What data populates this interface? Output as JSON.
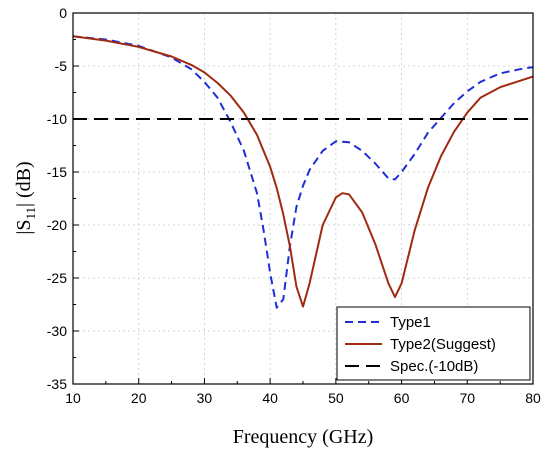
{
  "chart_data": {
    "type": "line",
    "xlabel": "Frequency (GHz)",
    "ylabel_parts": {
      "pre": "|S",
      "sub": "11",
      "post": "| (dB)"
    },
    "xlim": [
      10,
      80
    ],
    "ylim": [
      -35,
      0
    ],
    "xticks": [
      10,
      20,
      30,
      40,
      50,
      60,
      70,
      80
    ],
    "yticks": [
      0,
      -5,
      -10,
      -15,
      -20,
      -25,
      -30,
      -35
    ],
    "grid": "dotted",
    "legend_position": "bottom-right",
    "series": [
      {
        "name": "Type1",
        "color": "#1f2fd6",
        "dash": "dashed",
        "x": [
          10,
          15,
          20,
          25,
          28,
          30,
          32,
          34,
          36,
          38,
          39,
          40,
          41,
          42,
          43,
          44,
          45,
          46,
          48,
          50,
          52,
          54,
          56,
          58,
          59,
          60,
          62,
          64,
          66,
          68,
          70,
          72,
          75,
          78,
          80
        ],
        "y": [
          -2.2,
          -2.5,
          -3.1,
          -4.2,
          -5.3,
          -6.5,
          -8.0,
          -10.3,
          -13.0,
          -17.0,
          -20.5,
          -24.5,
          -27.8,
          -27.0,
          -22.0,
          -18.3,
          -16.3,
          -14.8,
          -13.0,
          -12.1,
          -12.2,
          -13.0,
          -14.2,
          -15.6,
          -15.7,
          -15.0,
          -13.3,
          -11.3,
          -9.9,
          -8.5,
          -7.4,
          -6.5,
          -5.7,
          -5.3,
          -5.1
        ]
      },
      {
        "name": "Type2(Suggest)",
        "color": "#a02a12",
        "dash": "solid",
        "x": [
          10,
          15,
          20,
          25,
          28,
          30,
          32,
          34,
          36,
          38,
          40,
          41,
          42,
          43,
          44,
          45,
          46,
          48,
          50,
          51,
          52,
          54,
          56,
          58,
          59,
          60,
          62,
          64,
          66,
          68,
          70,
          72,
          75,
          78,
          80
        ],
        "y": [
          -2.2,
          -2.6,
          -3.2,
          -4.1,
          -4.9,
          -5.6,
          -6.6,
          -7.8,
          -9.4,
          -11.5,
          -14.5,
          -16.5,
          -19.0,
          -22.0,
          -25.8,
          -27.7,
          -25.5,
          -20.0,
          -17.4,
          -17.0,
          -17.1,
          -18.8,
          -21.8,
          -25.5,
          -26.8,
          -25.5,
          -20.5,
          -16.5,
          -13.5,
          -11.2,
          -9.4,
          -8.0,
          -7.0,
          -6.4,
          -6.0
        ]
      },
      {
        "name": "Spec.(-10dB)",
        "color": "#000000",
        "dash": "longdash",
        "x": [
          10,
          80
        ],
        "y": [
          -10,
          -10
        ]
      }
    ]
  }
}
